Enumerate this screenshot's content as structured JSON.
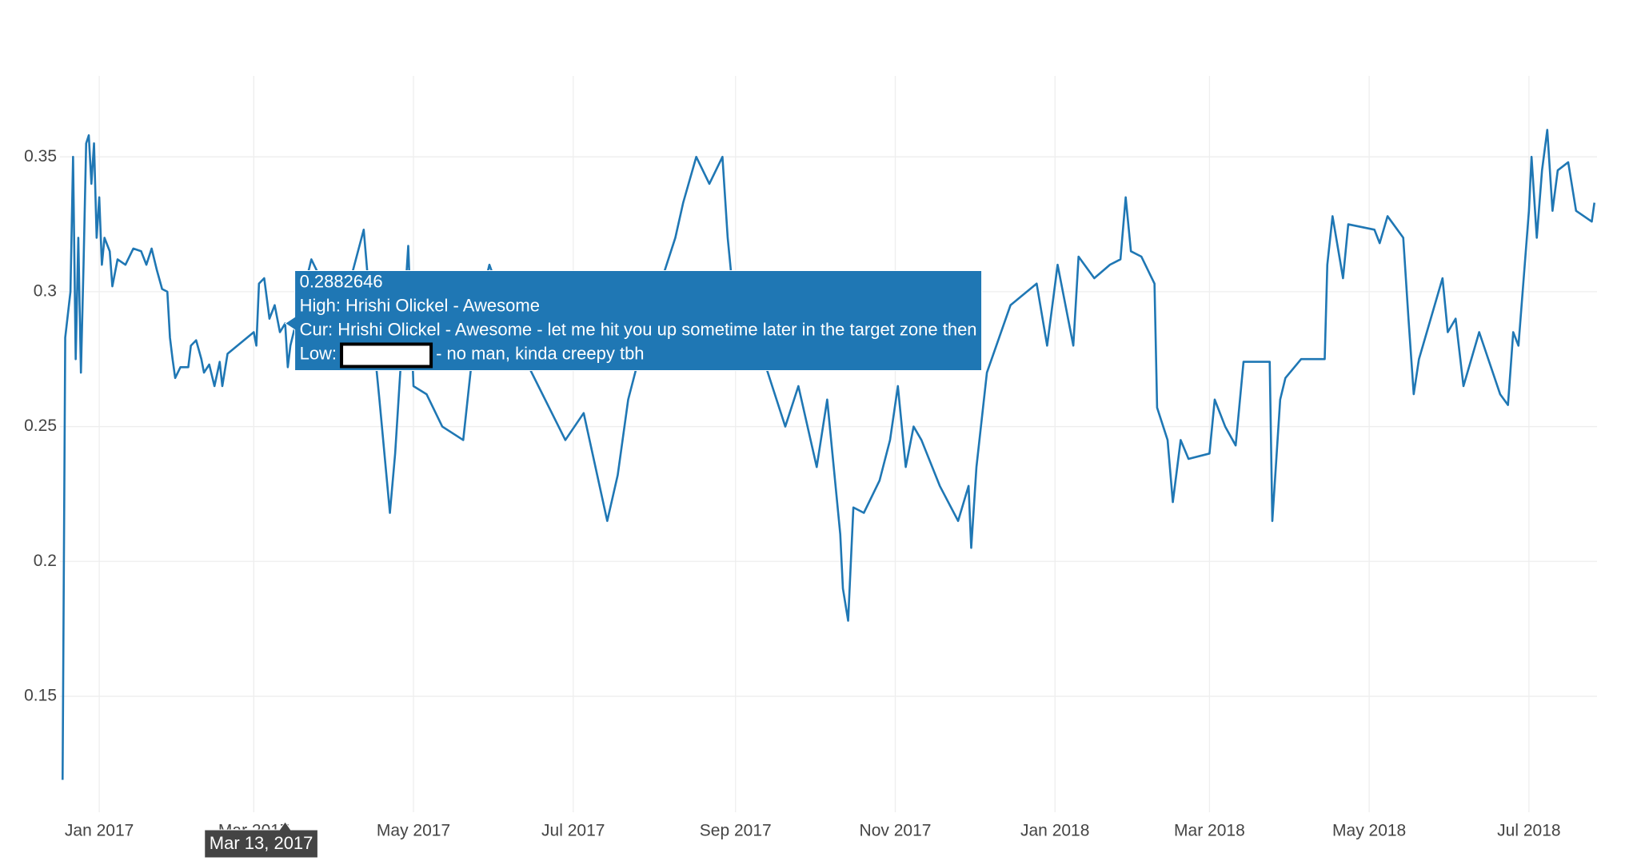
{
  "chart_data": {
    "type": "line",
    "color": "#1f77b4",
    "x": [
      "2016-12-18",
      "2016-12-19",
      "2016-12-21",
      "2016-12-22",
      "2016-12-23",
      "2016-12-24",
      "2016-12-25",
      "2016-12-26",
      "2016-12-27",
      "2016-12-28",
      "2016-12-29",
      "2016-12-30",
      "2016-12-31",
      "2017-01-01",
      "2017-01-02",
      "2017-01-03",
      "2017-01-05",
      "2017-01-06",
      "2017-01-08",
      "2017-01-11",
      "2017-01-14",
      "2017-01-17",
      "2017-01-19",
      "2017-01-21",
      "2017-01-23",
      "2017-01-25",
      "2017-01-27",
      "2017-01-28",
      "2017-01-29",
      "2017-01-30",
      "2017-02-01",
      "2017-02-04",
      "2017-02-05",
      "2017-02-07",
      "2017-02-09",
      "2017-02-10",
      "2017-02-12",
      "2017-02-14",
      "2017-02-16",
      "2017-02-17",
      "2017-02-19",
      "2017-03-01",
      "2017-03-02",
      "2017-03-03",
      "2017-03-05",
      "2017-03-07",
      "2017-03-09",
      "2017-03-11",
      "2017-03-13",
      "2017-03-14",
      "2017-03-15",
      "2017-03-23",
      "2017-04-03",
      "2017-04-12",
      "2017-04-14",
      "2017-04-18",
      "2017-04-22",
      "2017-04-24",
      "2017-04-29",
      "2017-05-01",
      "2017-05-06",
      "2017-05-12",
      "2017-05-20",
      "2017-05-25",
      "2017-05-30",
      "2017-06-10",
      "2017-06-28",
      "2017-07-05",
      "2017-07-14",
      "2017-07-18",
      "2017-07-22",
      "2017-07-30",
      "2017-08-09",
      "2017-08-12",
      "2017-08-17",
      "2017-08-22",
      "2017-08-27",
      "2017-08-29",
      "2017-08-31",
      "2017-09-10",
      "2017-09-20",
      "2017-09-25",
      "2017-10-02",
      "2017-10-06",
      "2017-10-11",
      "2017-10-12",
      "2017-10-14",
      "2017-10-16",
      "2017-10-20",
      "2017-10-26",
      "2017-10-30",
      "2017-11-02",
      "2017-11-05",
      "2017-11-08",
      "2017-11-11",
      "2017-11-18",
      "2017-11-25",
      "2017-11-29",
      "2017-11-30",
      "2017-12-02",
      "2017-12-06",
      "2017-12-15",
      "2017-12-25",
      "2017-12-29",
      "2018-01-02",
      "2018-01-08",
      "2018-01-10",
      "2018-01-16",
      "2018-01-22",
      "2018-01-26",
      "2018-01-28",
      "2018-01-30",
      "2018-02-03",
      "2018-02-08",
      "2018-02-09",
      "2018-02-13",
      "2018-02-15",
      "2018-02-18",
      "2018-02-21",
      "2018-03-01",
      "2018-03-03",
      "2018-03-07",
      "2018-03-11",
      "2018-03-14",
      "2018-03-24",
      "2018-03-25",
      "2018-03-28",
      "2018-03-30",
      "2018-04-05",
      "2018-04-14",
      "2018-04-15",
      "2018-04-17",
      "2018-04-21",
      "2018-04-23",
      "2018-05-03",
      "2018-05-05",
      "2018-05-08",
      "2018-05-14",
      "2018-05-16",
      "2018-05-18",
      "2018-05-20",
      "2018-05-29",
      "2018-05-31",
      "2018-06-03",
      "2018-06-06",
      "2018-06-12",
      "2018-06-20",
      "2018-06-23",
      "2018-06-25",
      "2018-06-27",
      "2018-07-01",
      "2018-07-02",
      "2018-07-04",
      "2018-07-06",
      "2018-07-08",
      "2018-07-10",
      "2018-07-12",
      "2018-07-16",
      "2018-07-19",
      "2018-07-25",
      "2018-07-26"
    ],
    "values": [
      0.119,
      0.283,
      0.3,
      0.35,
      0.275,
      0.32,
      0.27,
      0.31,
      0.355,
      0.358,
      0.34,
      0.355,
      0.32,
      0.335,
      0.31,
      0.32,
      0.315,
      0.302,
      0.312,
      0.31,
      0.316,
      0.315,
      0.31,
      0.316,
      0.308,
      0.301,
      0.3,
      0.283,
      0.275,
      0.268,
      0.272,
      0.272,
      0.28,
      0.282,
      0.275,
      0.27,
      0.273,
      0.265,
      0.274,
      0.265,
      0.277,
      0.285,
      0.28,
      0.303,
      0.305,
      0.29,
      0.295,
      0.285,
      0.2882646,
      0.272,
      0.28,
      0.312,
      0.29,
      0.323,
      0.3,
      0.26,
      0.218,
      0.24,
      0.317,
      0.265,
      0.262,
      0.25,
      0.245,
      0.29,
      0.31,
      0.28,
      0.245,
      0.255,
      0.215,
      0.232,
      0.26,
      0.29,
      0.32,
      0.333,
      0.35,
      0.34,
      0.35,
      0.32,
      0.3,
      0.28,
      0.25,
      0.265,
      0.235,
      0.26,
      0.21,
      0.19,
      0.178,
      0.22,
      0.218,
      0.23,
      0.245,
      0.265,
      0.235,
      0.25,
      0.245,
      0.228,
      0.215,
      0.228,
      0.205,
      0.235,
      0.27,
      0.295,
      0.303,
      0.28,
      0.31,
      0.28,
      0.313,
      0.305,
      0.31,
      0.312,
      0.335,
      0.315,
      0.313,
      0.303,
      0.257,
      0.245,
      0.222,
      0.245,
      0.238,
      0.24,
      0.26,
      0.25,
      0.243,
      0.274,
      0.274,
      0.215,
      0.26,
      0.268,
      0.275,
      0.275,
      0.31,
      0.328,
      0.305,
      0.325,
      0.323,
      0.318,
      0.328,
      0.32,
      0.29,
      0.262,
      0.275,
      0.305,
      0.285,
      0.29,
      0.265,
      0.285,
      0.262,
      0.258,
      0.285,
      0.28,
      0.33,
      0.35,
      0.32,
      0.345,
      0.36,
      0.33,
      0.345,
      0.348,
      0.33,
      0.326,
      0.333
    ],
    "xlim": [
      "2016-12-17",
      "2018-07-27"
    ],
    "xticks": [
      {
        "value": "2017-01-01",
        "label": "Jan 2017"
      },
      {
        "value": "2017-03-01",
        "label": "Mar 2017"
      },
      {
        "value": "2017-05-01",
        "label": "May 2017"
      },
      {
        "value": "2017-07-01",
        "label": "Jul 2017"
      },
      {
        "value": "2017-09-01",
        "label": "Sep 2017"
      },
      {
        "value": "2017-11-01",
        "label": "Nov 2017"
      },
      {
        "value": "2018-01-01",
        "label": "Jan 2018"
      },
      {
        "value": "2018-03-01",
        "label": "Mar 2018"
      },
      {
        "value": "2018-05-01",
        "label": "May 2018"
      },
      {
        "value": "2018-07-01",
        "label": "Jul 2018"
      }
    ],
    "ylim": [
      0.107,
      0.38
    ],
    "yticks": [
      0.15,
      0.2,
      0.25,
      0.3,
      0.35
    ],
    "grid": true,
    "hover": {
      "x": "Mar 13, 2017",
      "value": 0.2882646,
      "high": "High: Hrishi Olickel - Awesome",
      "cur": "Cur: Hrishi Olickel - Awesome - let me hit you up sometime later in the target zone then",
      "low_prefix": "Low:",
      "low_suffix": "- no man, kinda creepy tbh"
    }
  }
}
